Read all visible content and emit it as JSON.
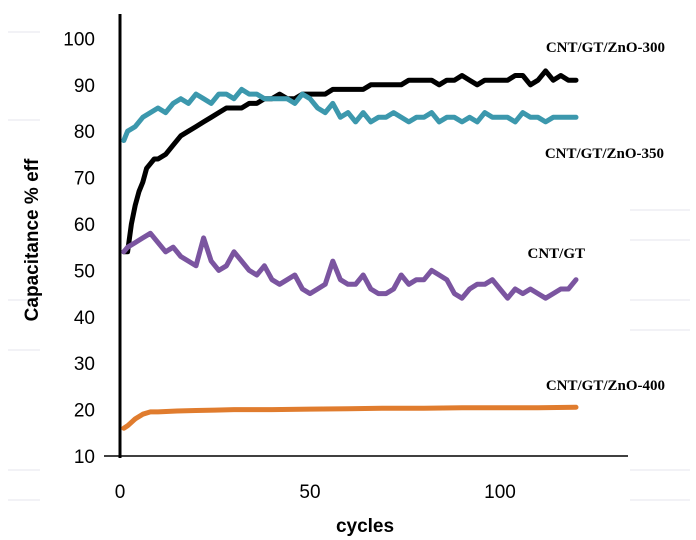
{
  "chart_data": {
    "type": "line",
    "xlabel": "cycles",
    "ylabel": "Capacitance % eff",
    "xlim": [
      0,
      130
    ],
    "ylim": [
      10,
      100
    ],
    "x_ticks": [
      "0",
      "50",
      "100"
    ],
    "y_ticks": [
      "10",
      "20",
      "30",
      "40",
      "50",
      "60",
      "70",
      "80",
      "90",
      "100"
    ],
    "grid": false,
    "legend": "labels at series ends (right)",
    "series": [
      {
        "name": "CNT/GT/ZnO-300",
        "color": "#000000",
        "x": [
          1,
          2,
          3,
          4,
          5,
          6,
          7,
          8,
          9,
          10,
          12,
          14,
          16,
          18,
          20,
          22,
          24,
          26,
          28,
          30,
          32,
          34,
          36,
          38,
          40,
          42,
          44,
          46,
          48,
          50,
          52,
          54,
          56,
          58,
          60,
          62,
          64,
          66,
          68,
          70,
          72,
          74,
          76,
          78,
          80,
          82,
          84,
          86,
          88,
          90,
          92,
          94,
          96,
          98,
          100,
          102,
          104,
          106,
          108,
          110,
          112,
          114,
          116,
          118,
          120
        ],
        "values": [
          54,
          54,
          60,
          64,
          67,
          69,
          72,
          73,
          74,
          74,
          75,
          77,
          79,
          80,
          81,
          82,
          83,
          84,
          85,
          85,
          85,
          86,
          86,
          87,
          87,
          88,
          87,
          87,
          88,
          88,
          88,
          88,
          89,
          89,
          89,
          89,
          89,
          90,
          90,
          90,
          90,
          90,
          91,
          91,
          91,
          91,
          90,
          91,
          91,
          92,
          91,
          90,
          91,
          91,
          91,
          91,
          92,
          92,
          90,
          91,
          93,
          91,
          92,
          91,
          91
        ]
      },
      {
        "name": "CNT/GT/ZnO-350",
        "color": "#3c98ad",
        "x": [
          1,
          2,
          4,
          6,
          8,
          10,
          12,
          14,
          16,
          18,
          20,
          22,
          24,
          26,
          28,
          30,
          32,
          34,
          36,
          38,
          40,
          42,
          44,
          46,
          48,
          50,
          52,
          54,
          56,
          58,
          60,
          62,
          64,
          66,
          68,
          70,
          72,
          74,
          76,
          78,
          80,
          82,
          84,
          86,
          88,
          90,
          92,
          94,
          96,
          98,
          100,
          102,
          104,
          106,
          108,
          110,
          112,
          114,
          116,
          118,
          120
        ],
        "values": [
          78,
          80,
          81,
          83,
          84,
          85,
          84,
          86,
          87,
          86,
          88,
          87,
          86,
          88,
          88,
          87,
          89,
          88,
          88,
          87,
          87,
          87,
          87,
          86,
          88,
          87,
          85,
          84,
          86,
          83,
          84,
          82,
          84,
          82,
          83,
          83,
          84,
          83,
          82,
          83,
          83,
          84,
          82,
          83,
          83,
          82,
          83,
          82,
          84,
          83,
          83,
          83,
          82,
          84,
          83,
          83,
          82,
          83,
          83,
          83,
          83
        ]
      },
      {
        "name": "CNT/GT",
        "color": "#7b55a0",
        "x": [
          1,
          2,
          4,
          6,
          8,
          10,
          12,
          14,
          16,
          18,
          20,
          22,
          24,
          26,
          28,
          30,
          32,
          34,
          36,
          38,
          40,
          42,
          44,
          46,
          48,
          50,
          52,
          54,
          56,
          58,
          60,
          62,
          64,
          66,
          68,
          70,
          72,
          74,
          76,
          78,
          80,
          82,
          84,
          86,
          88,
          90,
          92,
          94,
          96,
          98,
          100,
          102,
          104,
          106,
          108,
          110,
          112,
          114,
          116,
          118,
          120
        ],
        "values": [
          54,
          55,
          56,
          57,
          58,
          56,
          54,
          55,
          53,
          52,
          51,
          57,
          52,
          50,
          51,
          54,
          52,
          50,
          49,
          51,
          48,
          47,
          48,
          49,
          46,
          45,
          46,
          47,
          52,
          48,
          47,
          47,
          49,
          46,
          45,
          45,
          46,
          49,
          47,
          48,
          48,
          50,
          49,
          48,
          45,
          44,
          46,
          47,
          47,
          48,
          46,
          44,
          46,
          45,
          46,
          45,
          44,
          45,
          46,
          46,
          48
        ]
      },
      {
        "name": "CNT/GT/ZnO-400",
        "color": "#e07c2e",
        "x": [
          1,
          2,
          4,
          6,
          8,
          10,
          15,
          20,
          25,
          30,
          40,
          50,
          60,
          70,
          80,
          90,
          100,
          110,
          120
        ],
        "values": [
          16,
          16.5,
          18,
          19,
          19.5,
          19.5,
          19.7,
          19.8,
          19.9,
          20,
          20,
          20.1,
          20.2,
          20.3,
          20.3,
          20.4,
          20.4,
          20.4,
          20.5
        ]
      }
    ]
  }
}
